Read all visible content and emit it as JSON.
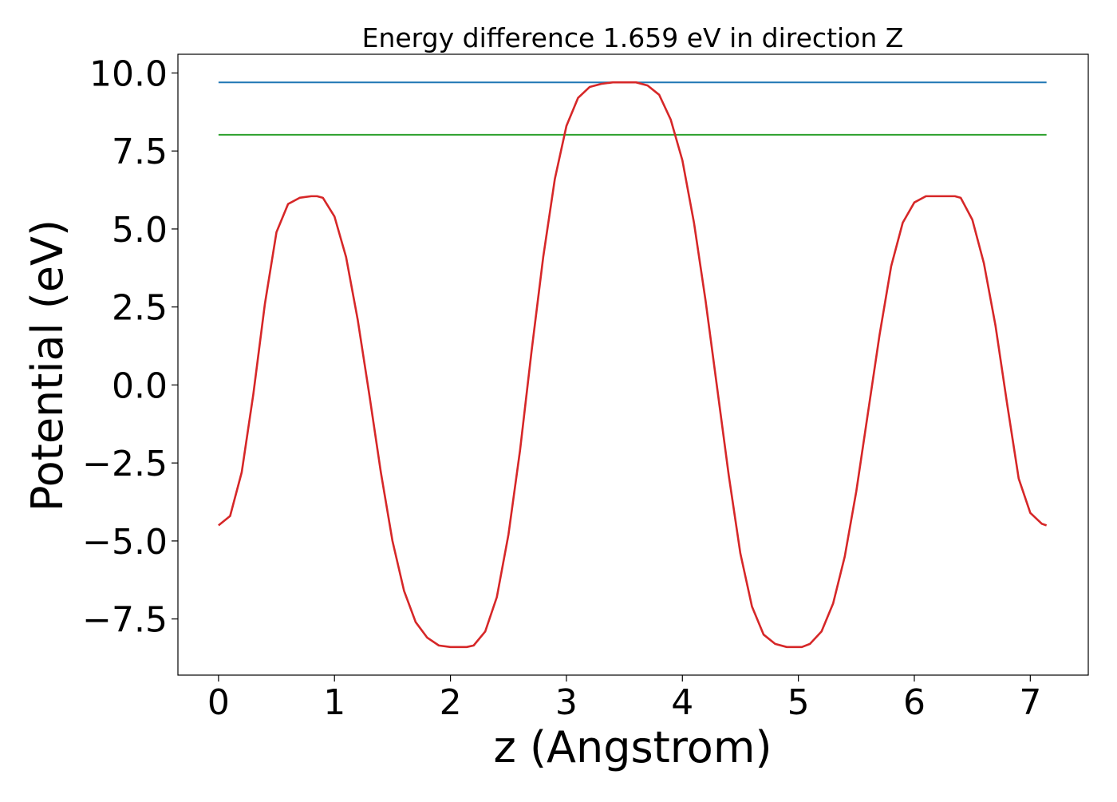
{
  "chart_data": {
    "type": "line",
    "title": "Energy difference 1.659 eV in direction Z",
    "xlabel": "z (Angstrom)",
    "ylabel": "Potential (eV)",
    "xlim": [
      -0.35,
      7.5
    ],
    "ylim": [
      -9.3,
      10.6
    ],
    "xticks": [
      0,
      1,
      2,
      3,
      4,
      5,
      6,
      7
    ],
    "xtick_labels": [
      "0",
      "1",
      "2",
      "3",
      "4",
      "5",
      "6",
      "7"
    ],
    "yticks": [
      -7.5,
      -5.0,
      -2.5,
      0.0,
      2.5,
      5.0,
      7.5,
      10.0
    ],
    "ytick_labels": [
      "−7.5",
      "−5.0",
      "−2.5",
      "0.0",
      "2.5",
      "5.0",
      "7.5",
      "10.0"
    ],
    "grid": false,
    "series": [
      {
        "color": "#1f77b4",
        "x": [
          0,
          7.14
        ],
        "y": [
          9.7,
          9.7
        ]
      },
      {
        "color": "#2ca02c",
        "x": [
          0,
          7.14
        ],
        "y": [
          8.02,
          8.02
        ]
      },
      {
        "color": "#d62728",
        "x": [
          0.0,
          0.1,
          0.2,
          0.3,
          0.4,
          0.5,
          0.6,
          0.7,
          0.8,
          0.85,
          0.9,
          1.0,
          1.1,
          1.2,
          1.3,
          1.4,
          1.5,
          1.6,
          1.7,
          1.8,
          1.9,
          2.0,
          2.1,
          2.14,
          2.2,
          2.3,
          2.4,
          2.5,
          2.6,
          2.7,
          2.8,
          2.9,
          3.0,
          3.1,
          3.2,
          3.3,
          3.4,
          3.5,
          3.57,
          3.6,
          3.7,
          3.8,
          3.9,
          4.0,
          4.1,
          4.2,
          4.3,
          4.4,
          4.5,
          4.6,
          4.7,
          4.8,
          4.9,
          5.0,
          5.03,
          5.1,
          5.2,
          5.3,
          5.4,
          5.5,
          5.6,
          5.7,
          5.8,
          5.9,
          6.0,
          6.1,
          6.2,
          6.3,
          6.35,
          6.4,
          6.5,
          6.6,
          6.7,
          6.8,
          6.9,
          7.0,
          7.1,
          7.14
        ],
        "y": [
          -4.5,
          -4.2,
          -2.8,
          -0.3,
          2.6,
          4.9,
          5.8,
          6.0,
          6.05,
          6.05,
          6.0,
          5.4,
          4.1,
          2.1,
          -0.3,
          -2.8,
          -5.0,
          -6.6,
          -7.6,
          -8.1,
          -8.35,
          -8.4,
          -8.4,
          -8.4,
          -8.35,
          -7.9,
          -6.8,
          -4.8,
          -2.1,
          1.1,
          4.1,
          6.6,
          8.3,
          9.2,
          9.55,
          9.65,
          9.7,
          9.7,
          9.7,
          9.7,
          9.6,
          9.3,
          8.5,
          7.2,
          5.2,
          2.7,
          -0.1,
          -2.9,
          -5.4,
          -7.1,
          -8.0,
          -8.3,
          -8.4,
          -8.4,
          -8.4,
          -8.3,
          -7.9,
          -7.0,
          -5.5,
          -3.4,
          -0.9,
          1.6,
          3.8,
          5.2,
          5.85,
          6.05,
          6.05,
          6.05,
          6.05,
          6.0,
          5.3,
          3.9,
          1.9,
          -0.6,
          -3.0,
          -4.1,
          -4.45,
          -4.5
        ]
      }
    ]
  }
}
